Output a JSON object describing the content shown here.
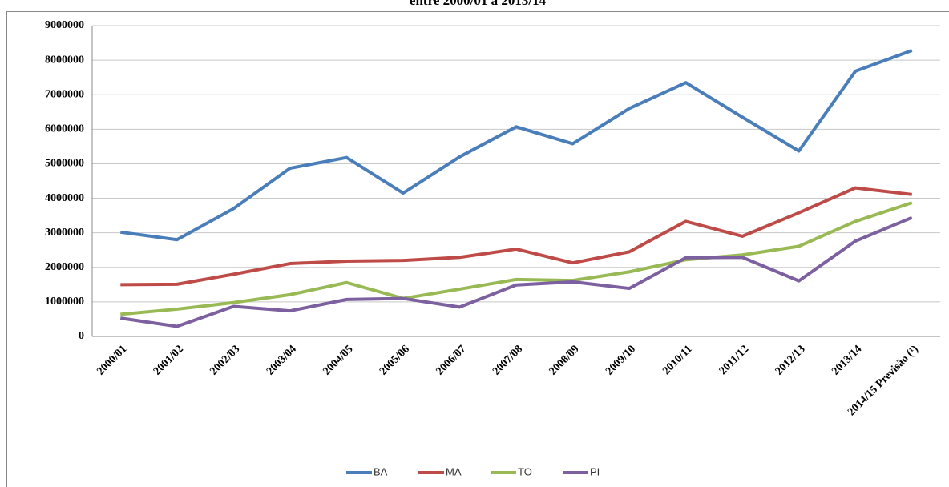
{
  "chart_data": {
    "type": "line",
    "title": "entre 2000/01 a 2013/14",
    "categories": [
      "2000/01",
      "2001/02",
      "2002/03",
      "2003/04",
      "2004/05",
      "2005/06",
      "2006/07",
      "2007/08",
      "2008/09",
      "2009/10",
      "2010/11",
      "2011/12",
      "2012/13",
      "2013/14",
      "2014/15 Previsão (¹)"
    ],
    "series": [
      {
        "name": "BA",
        "color": "#4a7ebb",
        "values": [
          3020000,
          2800000,
          3700000,
          4870000,
          5180000,
          4150000,
          5200000,
          6070000,
          5580000,
          6600000,
          7350000,
          6350000,
          5370000,
          7680000,
          8280000
        ]
      },
      {
        "name": "MA",
        "color": "#be4b48",
        "values": [
          1500000,
          1510000,
          1800000,
          2110000,
          2180000,
          2200000,
          2290000,
          2530000,
          2130000,
          2450000,
          3330000,
          2900000,
          3580000,
          4300000,
          4110000
        ]
      },
      {
        "name": "TO",
        "color": "#98b954",
        "values": [
          640000,
          790000,
          980000,
          1210000,
          1560000,
          1100000,
          1370000,
          1650000,
          1620000,
          1870000,
          2220000,
          2360000,
          2610000,
          3330000,
          3870000
        ]
      },
      {
        "name": "PI",
        "color": "#7d60a0",
        "values": [
          530000,
          290000,
          870000,
          740000,
          1070000,
          1100000,
          850000,
          1490000,
          1580000,
          1390000,
          2280000,
          2290000,
          1610000,
          2760000,
          3440000
        ]
      }
    ],
    "ylim": [
      0,
      9000000
    ],
    "yticks": [
      0,
      1000000,
      2000000,
      3000000,
      4000000,
      5000000,
      6000000,
      7000000,
      8000000,
      9000000
    ],
    "grid": true,
    "legend": "bottom"
  }
}
